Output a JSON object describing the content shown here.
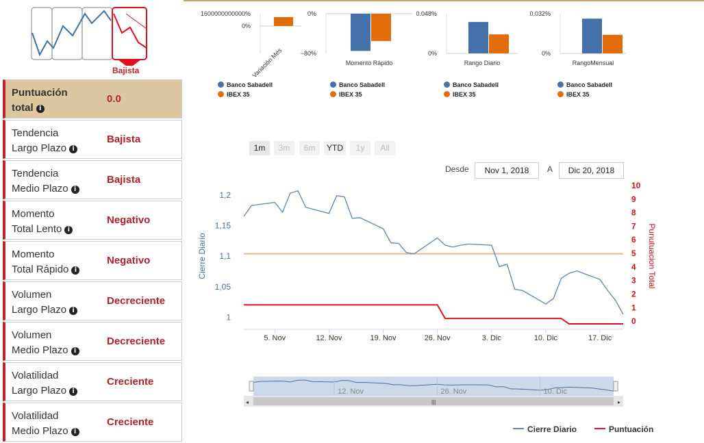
{
  "trend_widget": {
    "label": "Bajista"
  },
  "scores": [
    {
      "name_line1": "Puntuación",
      "name_line2": "total",
      "value": "0.0"
    },
    {
      "name_line1": "Tendencia",
      "name_line2": "Largo Plazo",
      "value": "Bajista"
    },
    {
      "name_line1": "Tendencia",
      "name_line2": "Medio Plazo",
      "value": "Bajista"
    },
    {
      "name_line1": "Momento",
      "name_line2": "Total Lento",
      "value": "Negativo"
    },
    {
      "name_line1": "Momento",
      "name_line2": "Total Rápido",
      "value": "Negativo"
    },
    {
      "name_line1": "Volumen",
      "name_line2": "Largo Plazo",
      "value": "Decreciente"
    },
    {
      "name_line1": "Volumen",
      "name_line2": "Medio Plazo",
      "value": "Decreciente"
    },
    {
      "name_line1": "Volatilidad",
      "name_line2": "Largo Plazo",
      "value": "Creciente"
    },
    {
      "name_line1": "Volatilidad",
      "name_line2": "Medio Plazo",
      "value": "Creciente"
    }
  ],
  "mini_legend": {
    "series_a": "Banco Sabadell",
    "series_b": "IBEX 35"
  },
  "colors": {
    "series_a": "#4472a8",
    "series_b": "#e36c0a",
    "close": "#5b85b8",
    "score": "#e0101e",
    "accent": "#b3202a"
  },
  "chart_data": [
    {
      "type": "bar",
      "title": "",
      "xlabel": "Variación Mes",
      "yticks": [
        "1600000000000%",
        "0%"
      ],
      "series": [
        {
          "name": "Banco Sabadell",
          "values": [
            0
          ]
        },
        {
          "name": "IBEX 35",
          "values": [
            1
          ]
        }
      ]
    },
    {
      "type": "bar",
      "title": "",
      "xlabel": "Momento Rápido",
      "yticks": [
        "0%",
        "−80%"
      ],
      "series": [
        {
          "name": "Banco Sabadell",
          "values": [
            -75
          ]
        },
        {
          "name": "IBEX 35",
          "values": [
            -55
          ]
        }
      ]
    },
    {
      "type": "bar",
      "title": "",
      "xlabel": "Rango Diario",
      "yticks": [
        "0.048%",
        "0%"
      ],
      "series": [
        {
          "name": "Banco Sabadell",
          "values": [
            0.038
          ]
        },
        {
          "name": "IBEX 35",
          "values": [
            0.023
          ]
        }
      ]
    },
    {
      "type": "bar",
      "title": "",
      "xlabel": "RangoMensual",
      "yticks": [
        "0.032%",
        "0%"
      ],
      "series": [
        {
          "name": "Banco Sabadell",
          "values": [
            0.028
          ]
        },
        {
          "name": "IBEX 35",
          "values": [
            0.015
          ]
        }
      ]
    },
    {
      "type": "line",
      "xlabel": "",
      "ylabel": "Cierre Diario",
      "ylabel_right": "Punutuacion Total",
      "ylim": [
        0.985,
        1.22
      ],
      "ylim_right": [
        -0.4,
        10.2
      ],
      "yticks": [
        "1",
        "1,05",
        "1,1",
        "1,15",
        "1,2"
      ],
      "ytick_values": [
        1,
        1.05,
        1.1,
        1.15,
        1.2
      ],
      "yticks_right": [
        "0",
        "1",
        "2",
        "3",
        "4",
        "5",
        "6",
        "7",
        "8",
        "9",
        "10"
      ],
      "xticks": [
        "5. Nov",
        "12. Nov",
        "19. Nov",
        "26. Nov",
        "3. Dic",
        "10. Dic",
        "17. Dic"
      ],
      "xtick_dates": [
        "2018-11-05",
        "2018-11-12",
        "2018-11-19",
        "2018-11-26",
        "2018-12-03",
        "2018-12-10",
        "2018-12-17"
      ],
      "xlim": [
        "2018-11-01",
        "2018-12-20"
      ],
      "reference_line": 1.104,
      "series": [
        {
          "name": "Cierre Diario",
          "dates": [
            "2018-11-01",
            "2018-11-02",
            "2018-11-05",
            "2018-11-06",
            "2018-11-07",
            "2018-11-08",
            "2018-11-09",
            "2018-11-12",
            "2018-11-13",
            "2018-11-14",
            "2018-11-15",
            "2018-11-16",
            "2018-11-19",
            "2018-11-20",
            "2018-11-21",
            "2018-11-22",
            "2018-11-23",
            "2018-11-26",
            "2018-11-27",
            "2018-11-28",
            "2018-11-29",
            "2018-11-30",
            "2018-12-03",
            "2018-12-04",
            "2018-12-05",
            "2018-12-06",
            "2018-12-07",
            "2018-12-10",
            "2018-12-11",
            "2018-12-12",
            "2018-12-13",
            "2018-12-14",
            "2018-12-17",
            "2018-12-18",
            "2018-12-19",
            "2018-12-20"
          ],
          "values": [
            1.165,
            1.183,
            1.188,
            1.172,
            1.203,
            1.207,
            1.18,
            1.17,
            1.199,
            1.197,
            1.162,
            1.163,
            1.145,
            1.122,
            1.121,
            1.106,
            1.104,
            1.13,
            1.118,
            1.115,
            1.118,
            1.12,
            1.118,
            1.083,
            1.087,
            1.046,
            1.044,
            1.022,
            1.031,
            1.064,
            1.072,
            1.076,
            1.062,
            1.044,
            1.028,
            1.005
          ]
        },
        {
          "name": "Puntuación",
          "dates": [
            "2018-11-01",
            "2018-11-26",
            "2018-11-27",
            "2018-12-12",
            "2018-12-13",
            "2018-12-20"
          ],
          "values": [
            1.2,
            1.2,
            0.2,
            0.2,
            -0.2,
            -0.2
          ]
        }
      ]
    }
  ],
  "range_selector": {
    "buttons": [
      "1m",
      "3m",
      "6m",
      "YTD",
      "1y",
      "All"
    ],
    "from_label": "Desde",
    "from_value": "Nov 1, 2018",
    "to_label": "A",
    "to_value": "Dic 20, 2018"
  },
  "navigator": {
    "labels": [
      "12. Nov",
      "26. Nov",
      "10. Dic"
    ]
  },
  "legend": {
    "close": "Cierre Diario",
    "score": "Puntuación"
  }
}
